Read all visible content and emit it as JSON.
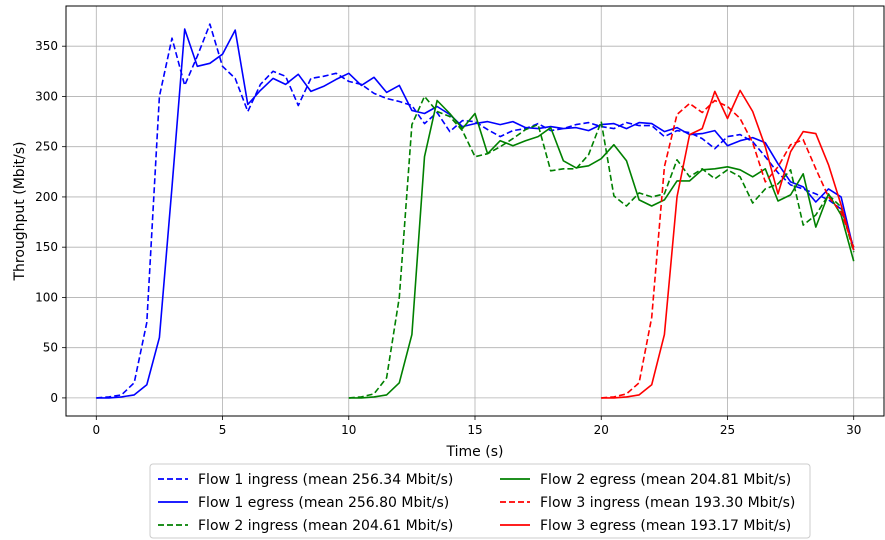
{
  "chart_data": {
    "type": "line",
    "xlabel": "Time (s)",
    "ylabel": "Throughput (Mbit/s)",
    "xlim": [
      -1.2,
      31.2
    ],
    "ylim": [
      -18,
      390
    ],
    "xticks": [
      0,
      5,
      10,
      15,
      20,
      25,
      30
    ],
    "yticks": [
      0,
      50,
      100,
      150,
      200,
      250,
      300,
      350
    ],
    "grid": true,
    "legend_position": "bottom-center",
    "series": [
      {
        "name": "Flow 1 ingress (mean 256.34 Mbit/s)",
        "color": "#0000ff",
        "dash": true,
        "x": [
          0,
          0.5,
          1,
          1.5,
          2,
          2.5,
          3,
          3.5,
          4,
          4.5,
          5,
          5.5,
          6,
          6.5,
          7,
          7.5,
          8,
          8.5,
          9,
          9.5,
          10,
          10.5,
          11,
          11.5,
          12,
          12.5,
          13,
          13.5,
          14,
          14.5,
          15,
          15.5,
          16,
          16.5,
          17,
          17.5,
          18,
          18.5,
          19,
          19.5,
          20,
          20.5,
          21,
          21.5,
          22,
          22.5,
          23,
          23.5,
          24,
          24.5,
          25,
          25.5,
          26,
          26.5,
          27,
          27.5,
          28,
          28.5,
          29,
          29.5,
          30
        ],
        "y": [
          0,
          1,
          3,
          15,
          75,
          300,
          358,
          311,
          340,
          372,
          330,
          318,
          285,
          312,
          325,
          320,
          291,
          318,
          320,
          323,
          315,
          312,
          303,
          298,
          295,
          291,
          273,
          284,
          265,
          276,
          275,
          267,
          260,
          266,
          268,
          273,
          266,
          268,
          272,
          274,
          270,
          268,
          274,
          271,
          271,
          260,
          266,
          264,
          258,
          248,
          260,
          262,
          255,
          240,
          224,
          212,
          208,
          203,
          197,
          188,
          150
        ]
      },
      {
        "name": "Flow 1 egress (mean 256.80 Mbit/s)",
        "color": "#0000ff",
        "dash": false,
        "x": [
          0,
          0.5,
          1,
          1.5,
          2,
          2.5,
          3,
          3.5,
          4,
          4.5,
          5,
          5.5,
          6,
          6.5,
          7,
          7.5,
          8,
          8.5,
          9,
          9.5,
          10,
          10.5,
          11,
          11.5,
          12,
          12.5,
          13,
          13.5,
          14,
          14.5,
          15,
          15.5,
          16,
          16.5,
          17,
          17.5,
          18,
          18.5,
          19,
          19.5,
          20,
          20.5,
          21,
          21.5,
          22,
          22.5,
          23,
          23.5,
          24,
          24.5,
          25,
          25.5,
          26,
          26.5,
          27,
          27.5,
          28,
          28.5,
          29,
          29.5,
          30
        ],
        "y": [
          0,
          0,
          1,
          3,
          13,
          60,
          210,
          367,
          330,
          333,
          342,
          366,
          292,
          306,
          318,
          312,
          322,
          305,
          310,
          317,
          323,
          311,
          319,
          304,
          311,
          286,
          283,
          290,
          282,
          270,
          273,
          275,
          272,
          275,
          269,
          268,
          270,
          268,
          269,
          266,
          272,
          273,
          268,
          274,
          273,
          265,
          269,
          262,
          263,
          266,
          251,
          256,
          259,
          254,
          233,
          215,
          210,
          195,
          208,
          200,
          147
        ]
      },
      {
        "name": "Flow 2 ingress (mean 204.61 Mbit/s)",
        "color": "#008000",
        "dash": true,
        "x": [
          10,
          10.5,
          11,
          11.5,
          12,
          12.5,
          13,
          13.5,
          14,
          14.5,
          15,
          15.5,
          16,
          16.5,
          17,
          17.5,
          18,
          18.5,
          19,
          19.5,
          20,
          20.5,
          21,
          21.5,
          22,
          22.5,
          23,
          23.5,
          24,
          24.5,
          25,
          25.5,
          26,
          26.5,
          27,
          27.5,
          28,
          28.5,
          29,
          29.5,
          30
        ],
        "y": [
          0,
          1,
          4,
          20,
          100,
          272,
          300,
          285,
          280,
          266,
          240,
          243,
          250,
          258,
          267,
          272,
          226,
          228,
          228,
          242,
          275,
          201,
          191,
          204,
          200,
          203,
          237,
          220,
          228,
          218,
          227,
          220,
          194,
          208,
          213,
          227,
          172,
          182,
          202,
          190,
          145
        ]
      },
      {
        "name": "Flow 2 egress (mean 204.81 Mbit/s)",
        "color": "#008000",
        "dash": false,
        "x": [
          10,
          10.5,
          11,
          11.5,
          12,
          12.5,
          13,
          13.5,
          14,
          14.5,
          15,
          15.5,
          16,
          16.5,
          17,
          17.5,
          18,
          18.5,
          19,
          19.5,
          20,
          20.5,
          21,
          21.5,
          22,
          22.5,
          23,
          23.5,
          24,
          24.5,
          25,
          25.5,
          26,
          26.5,
          27,
          27.5,
          28,
          28.5,
          29,
          29.5,
          30
        ],
        "y": [
          0,
          0,
          1,
          3,
          15,
          63,
          240,
          296,
          283,
          268,
          283,
          243,
          256,
          251,
          256,
          260,
          269,
          236,
          229,
          231,
          238,
          252,
          236,
          197,
          191,
          197,
          216,
          216,
          227,
          228,
          230,
          227,
          220,
          228,
          196,
          202,
          223,
          170,
          203,
          182,
          136
        ]
      },
      {
        "name": "Flow 3 ingress (mean 193.30 Mbit/s)",
        "color": "#ff0000",
        "dash": true,
        "x": [
          20,
          20.5,
          21,
          21.5,
          22,
          22.5,
          23,
          23.5,
          24,
          24.5,
          25,
          25.5,
          26,
          26.5,
          27,
          27.5,
          28,
          28.5,
          29,
          29.5,
          30
        ],
        "y": [
          0,
          1,
          4,
          15,
          80,
          230,
          282,
          293,
          284,
          296,
          290,
          278,
          254,
          215,
          230,
          252,
          257,
          228,
          200,
          185,
          150
        ]
      },
      {
        "name": "Flow 3 egress (mean 193.17 Mbit/s)",
        "color": "#ff0000",
        "dash": false,
        "x": [
          20,
          20.5,
          21,
          21.5,
          22,
          22.5,
          23,
          23.5,
          24,
          24.5,
          25,
          25.5,
          26,
          26.5,
          27,
          27.5,
          28,
          28.5,
          29,
          29.5,
          30
        ],
        "y": [
          0,
          0,
          1,
          3,
          13,
          63,
          200,
          262,
          268,
          305,
          278,
          306,
          285,
          250,
          203,
          245,
          265,
          263,
          232,
          192,
          147
        ]
      }
    ]
  }
}
